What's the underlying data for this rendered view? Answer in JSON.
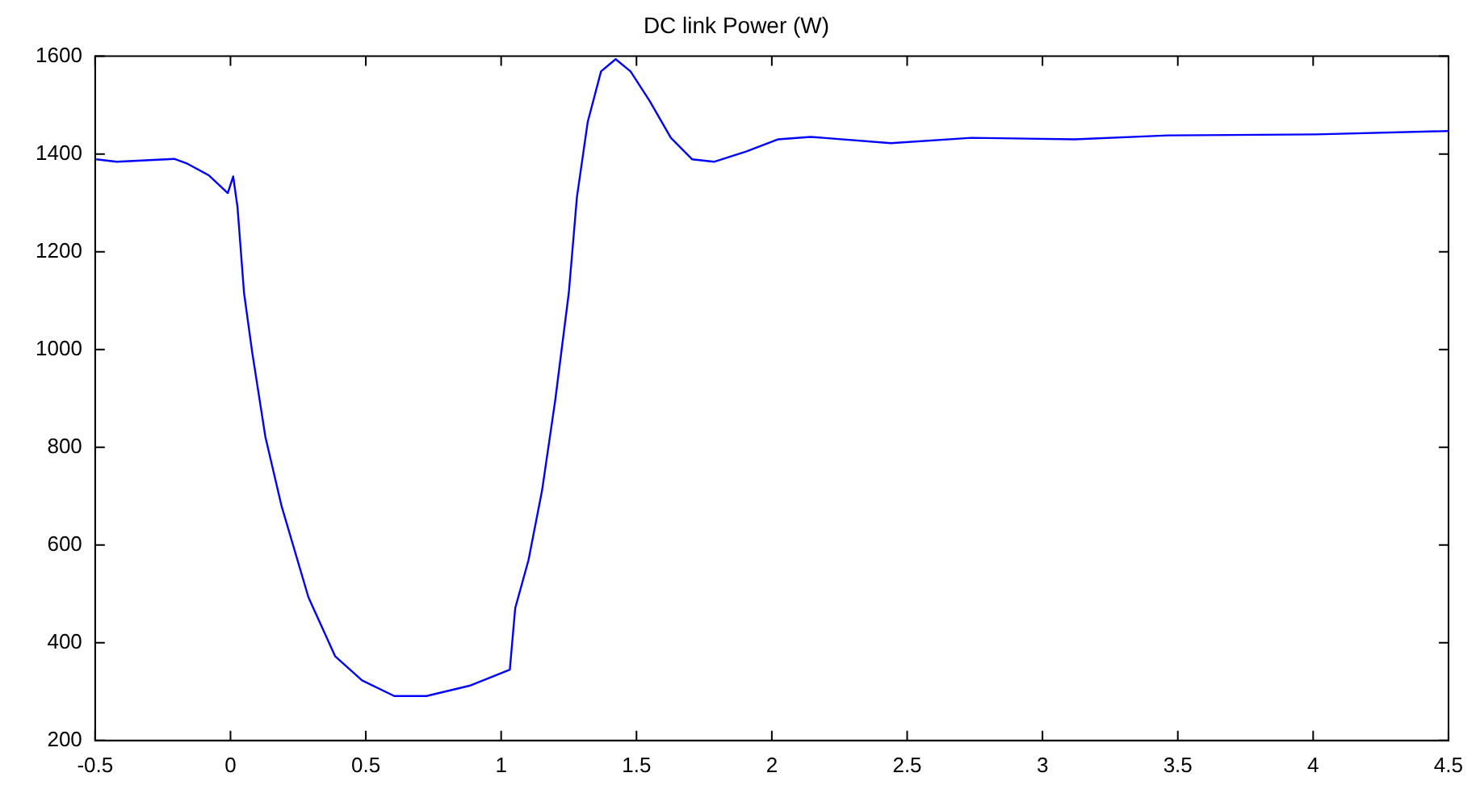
{
  "chart_data": {
    "type": "line",
    "title": "DC link Power (W)",
    "x": [
      -0.496,
      -0.42,
      -0.208,
      -0.159,
      -0.079,
      -0.01,
      0.01,
      0.026,
      0.05,
      0.08,
      0.129,
      0.189,
      0.288,
      0.387,
      0.486,
      0.605,
      0.724,
      0.883,
      1.032,
      1.052,
      1.101,
      1.151,
      1.2,
      1.25,
      1.28,
      1.32,
      1.369,
      1.423,
      1.478,
      1.548,
      1.627,
      1.706,
      1.786,
      1.905,
      2.024,
      2.143,
      2.44,
      2.738,
      3.119,
      3.464,
      4.012,
      4.5
    ],
    "series": [
      {
        "color": "#0000ff",
        "values": [
          1389,
          1384,
          1390,
          1380,
          1356,
          1320,
          1354,
          1291,
          1116,
          995,
          821,
          679,
          493,
          372,
          323,
          291,
          291,
          312,
          345,
          471,
          569,
          711,
          897,
          1116,
          1312,
          1466,
          1569,
          1594,
          1569,
          1509,
          1433,
          1389,
          1384,
          1405,
          1430,
          1435,
          1422,
          1433,
          1430,
          1438,
          1440,
          1447
        ]
      }
    ],
    "xlim": [
      -0.5,
      4.5
    ],
    "xticks": [
      -0.5,
      0,
      0.5,
      1,
      1.5,
      2,
      2.5,
      3,
      3.5,
      4,
      4.5
    ],
    "ylim": [
      200,
      1600
    ],
    "yticks": [
      200,
      400,
      600,
      800,
      1000,
      1200,
      1400,
      1600
    ],
    "grid": false,
    "legend": false,
    "marker": "none",
    "line_style": "solid"
  }
}
